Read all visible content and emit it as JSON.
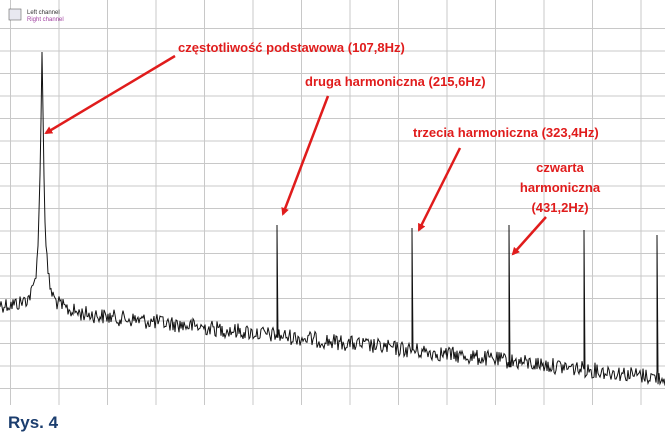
{
  "legend": [
    "Left channel",
    "Right channel"
  ],
  "annotations": [
    {
      "lines": [
        "częstotliwość podstawowa (107,8Hz)"
      ]
    },
    {
      "lines": [
        "druga harmoniczna (215,6Hz)"
      ]
    },
    {
      "lines": [
        "trzecia harmoniczna (323,4Hz)"
      ]
    },
    {
      "lines": [
        "czwarta",
        "harmoniczna",
        "(431,2Hz)"
      ]
    }
  ],
  "caption": "Rys. 4"
}
